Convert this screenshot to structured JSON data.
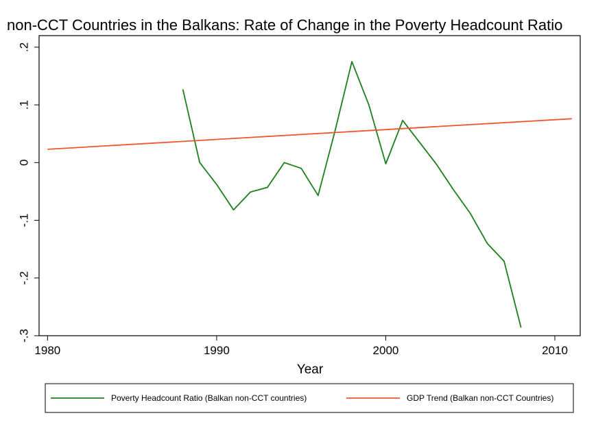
{
  "chart_data": {
    "type": "line",
    "title": "non-CCT Countries in the Balkans: Rate of Change in the Poverty Headcount Ratio",
    "xlabel": "Year",
    "ylabel": "",
    "xlim": [
      1979.5,
      2011.5
    ],
    "ylim": [
      -0.3,
      0.22
    ],
    "xticks": [
      1980,
      1990,
      2000,
      2010
    ],
    "xtick_labels": [
      "1980",
      "1990",
      "2000",
      "2010"
    ],
    "yticks": [
      -0.3,
      -0.2,
      -0.1,
      0,
      0.1,
      0.2
    ],
    "ytick_labels": [
      "-.3",
      "-.2",
      "-.1",
      "0",
      ".1",
      ".2"
    ],
    "grid": false,
    "legend_position": "bottom",
    "series": [
      {
        "name": "Poverty Headcount Ratio (Balkan non-CCT countries)",
        "color": "#1a7f1a",
        "x": [
          1988,
          1989,
          1990,
          1991,
          1992,
          1993,
          1994,
          1995,
          1996,
          1997,
          1998,
          1999,
          2000,
          2001,
          2002,
          2003,
          2004,
          2005,
          2006,
          2007,
          2008
        ],
        "y": [
          0.127,
          0.0,
          -0.038,
          -0.082,
          -0.051,
          -0.043,
          0.0,
          -0.01,
          -0.057,
          0.055,
          0.175,
          0.1,
          -0.002,
          0.073,
          0.035,
          -0.003,
          -0.047,
          -0.088,
          -0.14,
          -0.171,
          -0.286
        ]
      },
      {
        "name": "GDP Trend (Balkan non-CCT Countries)",
        "color": "#f0562a",
        "x": [
          1980,
          2011
        ],
        "y": [
          0.023,
          0.076
        ]
      }
    ]
  }
}
